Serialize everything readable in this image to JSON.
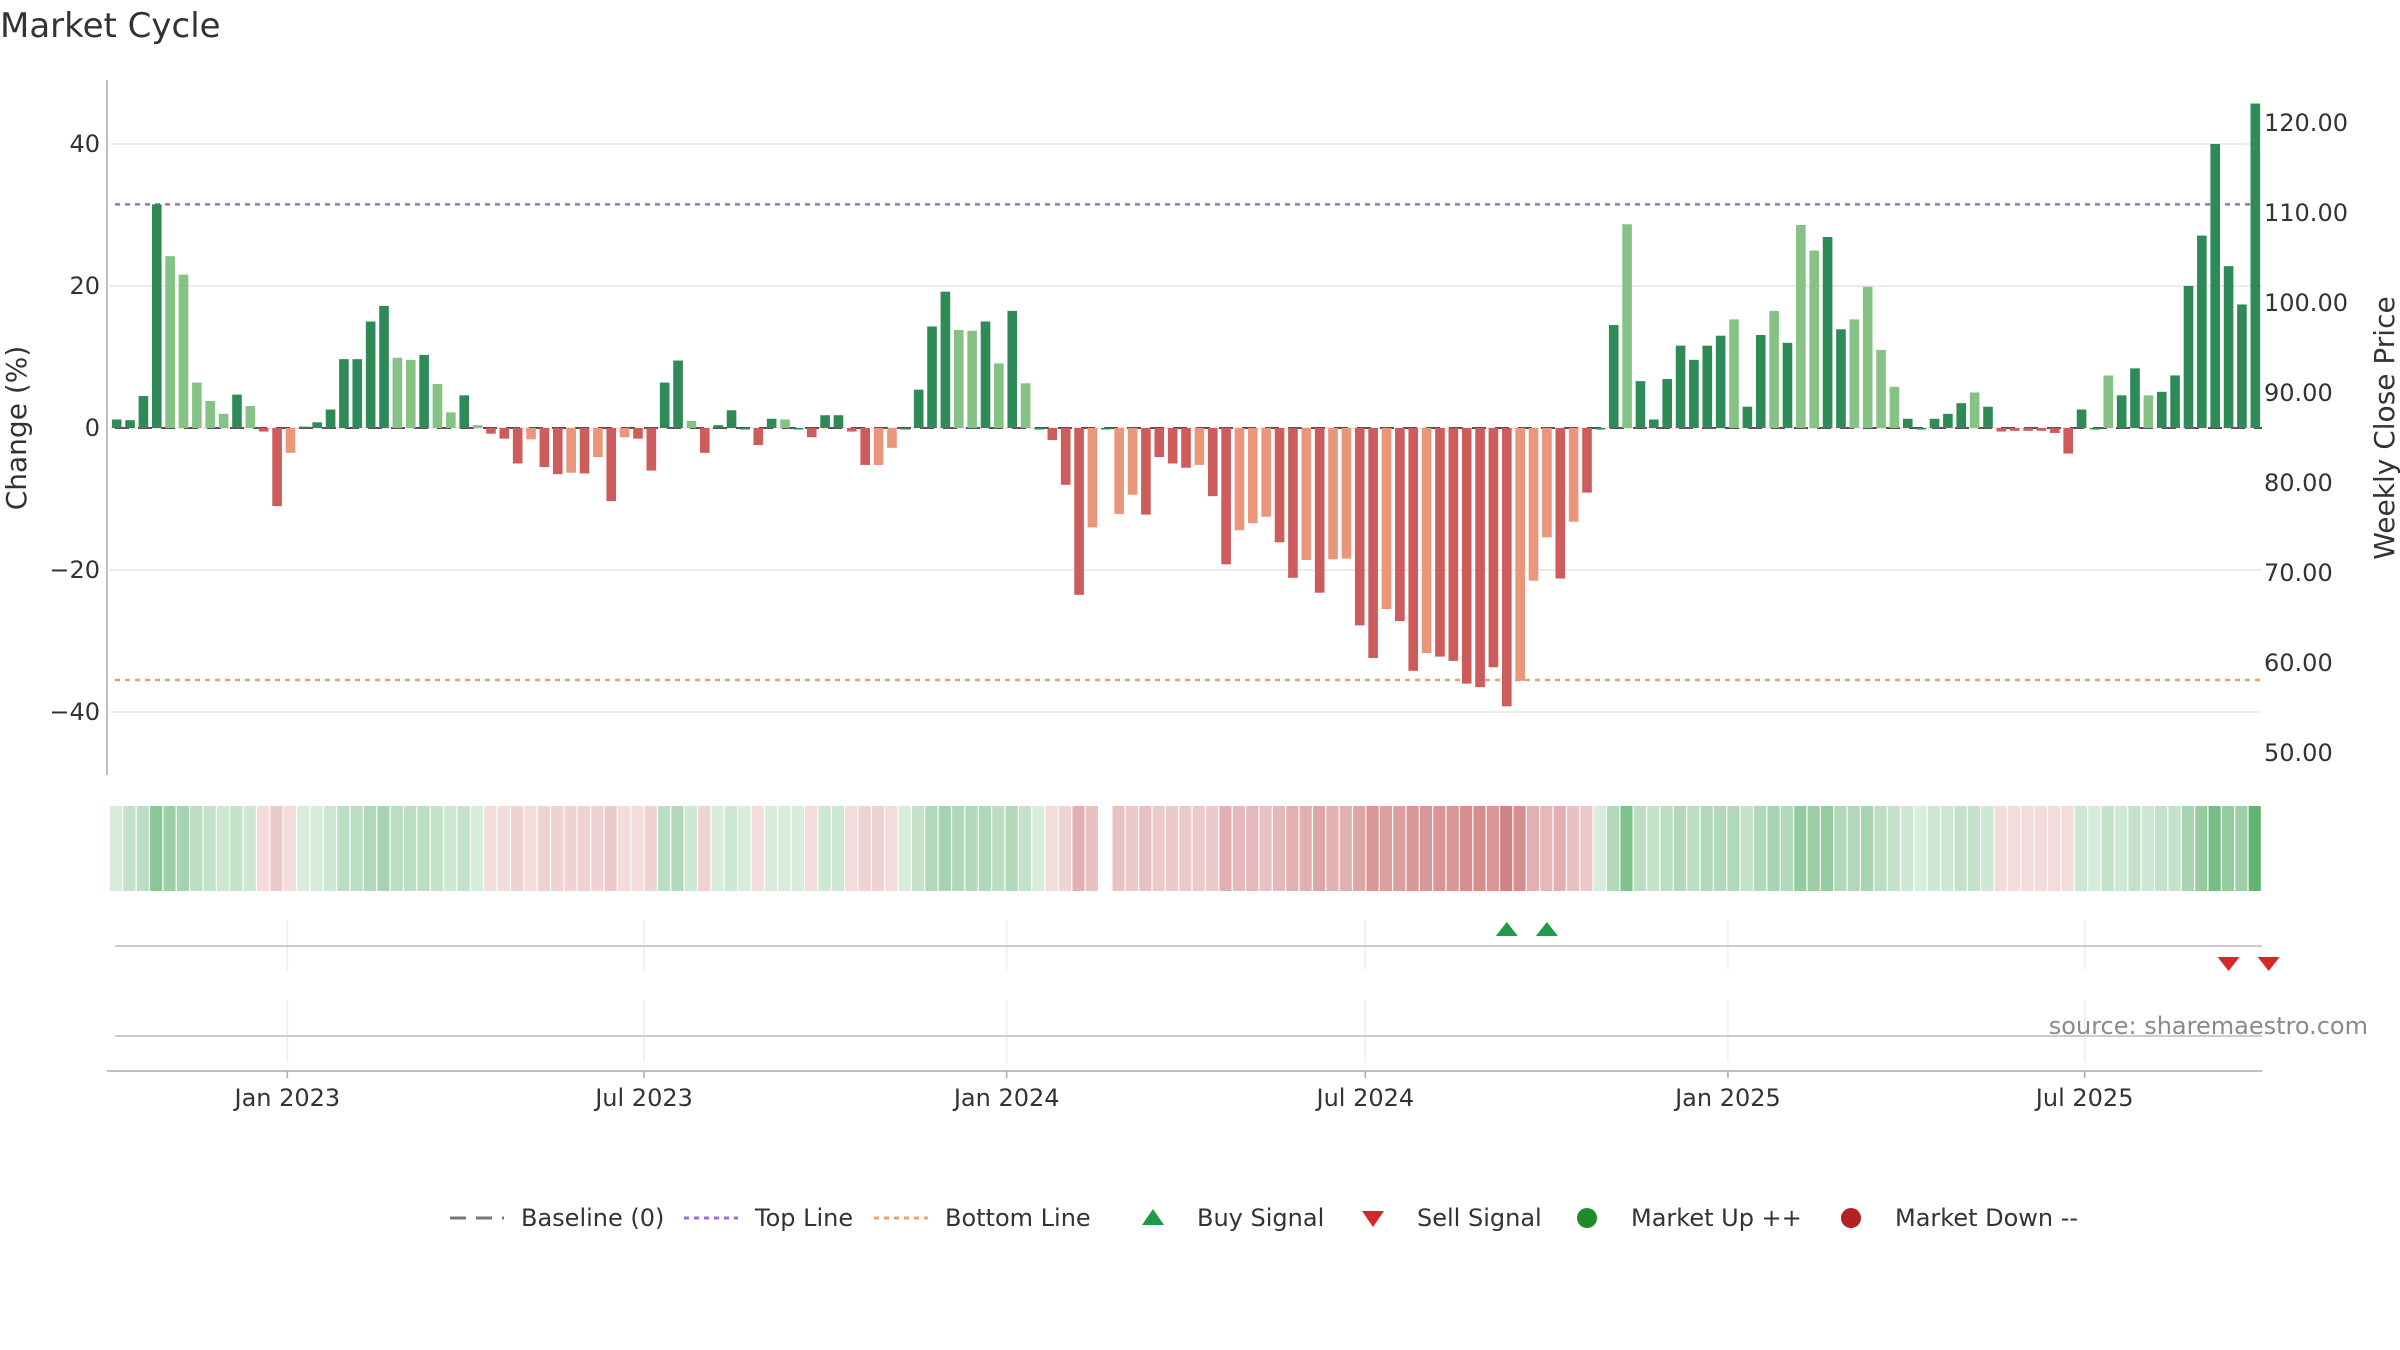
{
  "chart_data": {
    "type": "bar",
    "title": "Market Cycle",
    "ylabel": "Change (%)",
    "y2label": "Weekly Close Price",
    "ylim": [
      -49,
      49
    ],
    "y2lim": [
      48.0,
      124.0
    ],
    "yticks": [
      "40",
      "20",
      "0",
      "−20",
      "−40"
    ],
    "yticks_values": [
      40,
      20,
      0,
      -20,
      -40
    ],
    "y2ticks": [
      "120.00",
      "110.00",
      "100.00",
      "90.00",
      "80.00",
      "70.00",
      "60.00",
      "50.00"
    ],
    "y2ticks_values": [
      120,
      110,
      100,
      90,
      80,
      70,
      60,
      50
    ],
    "x_start": "2022-10-03",
    "x_end": "2025-09-29",
    "xticks": [
      {
        "label": "Jan 2023",
        "date": "2023-01-01"
      },
      {
        "label": "Jul 2023",
        "date": "2023-07-01"
      },
      {
        "label": "Jan 2024",
        "date": "2024-01-01"
      },
      {
        "label": "Jul 2024",
        "date": "2024-07-01"
      },
      {
        "label": "Jan 2025",
        "date": "2025-01-01"
      },
      {
        "label": "Jul 2025",
        "date": "2025-07-01"
      }
    ],
    "top_line": 31.5,
    "bottom_line": -35.5,
    "baseline": 0,
    "values": [
      1.2,
      1.1,
      4.5,
      31.5,
      24.2,
      21.6,
      6.4,
      3.8,
      2.0,
      4.7,
      3.1,
      -0.5,
      -11.0,
      -3.5,
      0.2,
      0.8,
      2.6,
      9.7,
      9.7,
      15.0,
      17.2,
      9.9,
      9.6,
      10.3,
      6.2,
      2.2,
      4.6,
      0.4,
      -0.8,
      -1.5,
      -5.0,
      -1.6,
      -5.5,
      -6.5,
      -6.3,
      -6.4,
      -4.1,
      -10.3,
      -1.3,
      -1.5,
      -6.0,
      6.4,
      9.5,
      1.0,
      -3.5,
      0.4,
      2.5,
      0,
      -2.4,
      1.3,
      1.2,
      0,
      -1.3,
      1.8,
      1.8,
      -0.5,
      -5.2,
      -5.2,
      -2.8,
      0,
      5.4,
      14.3,
      19.2,
      13.8,
      13.7,
      15.0,
      9.1,
      16.5,
      6.3,
      0,
      -1.7,
      -8.0,
      -23.5,
      -14.0,
      0,
      -12.1,
      -9.4,
      -12.2,
      -4.1,
      -5.0,
      -5.6,
      -5.2,
      -9.6,
      -19.2,
      -14.4,
      -13.4,
      -12.5,
      -16.1,
      -21.1,
      -18.6,
      -23.2,
      -18.5,
      -18.4,
      -27.8,
      -32.4,
      -25.5,
      -27.2,
      -34.2,
      -31.7,
      -32.2,
      -32.8,
      -36.0,
      -36.5,
      -33.7,
      -39.2,
      -35.6,
      -21.5,
      -15.4,
      -21.2,
      -13.2,
      -9.1,
      0,
      14.5,
      28.7,
      6.6,
      1.2,
      6.9,
      11.6,
      9.6,
      11.6,
      13.0,
      15.3,
      3.0,
      13.1,
      16.5,
      12.0,
      28.6,
      25.0,
      26.9,
      13.9,
      15.3,
      19.9,
      11.0,
      5.8,
      1.3,
      0,
      1.3,
      2.0,
      3.5,
      5.0,
      3.0,
      -0.5,
      -0.4,
      -0.4,
      -0.4,
      -0.7,
      -3.6,
      2.6,
      0,
      7.4,
      4.6,
      8.4,
      4.6,
      5.1,
      7.4,
      20.0,
      27.1,
      40.0,
      22.8,
      17.4,
      45.7
    ],
    "bar_shade": [
      1,
      1,
      1,
      1,
      0,
      0,
      0,
      0,
      0,
      1,
      0,
      1,
      1,
      0,
      1,
      1,
      1,
      1,
      1,
      1,
      1,
      0,
      0,
      1,
      0,
      0,
      1,
      0,
      1,
      1,
      1,
      0,
      1,
      1,
      0,
      1,
      0,
      1,
      0,
      1,
      1,
      1,
      1,
      0,
      1,
      1,
      1,
      1,
      1,
      1,
      0,
      1,
      1,
      1,
      1,
      1,
      1,
      0,
      0,
      1,
      1,
      1,
      1,
      0,
      0,
      1,
      0,
      1,
      0,
      1,
      1,
      1,
      1,
      0,
      1,
      0,
      0,
      1,
      1,
      1,
      1,
      0,
      1,
      1,
      0,
      0,
      0,
      1,
      1,
      0,
      1,
      0,
      0,
      1,
      1,
      0,
      1,
      1,
      0,
      1,
      1,
      1,
      1,
      1,
      1,
      0,
      0,
      0,
      1,
      0,
      1,
      1,
      1,
      0,
      1,
      1,
      1,
      1,
      1,
      1,
      1,
      0,
      1,
      1,
      0,
      1,
      0,
      0,
      1,
      1,
      0,
      0,
      0,
      0,
      1,
      1,
      1,
      1,
      1,
      0,
      1,
      1,
      1,
      1,
      1,
      1,
      1,
      1,
      1,
      0,
      1,
      1,
      0,
      1,
      1,
      1,
      1,
      1,
      1,
      1,
      1,
      1
    ],
    "regime_strength": [
      0.2,
      0.3,
      0.35,
      0.6,
      0.5,
      0.45,
      0.35,
      0.3,
      0.25,
      0.3,
      0.25,
      0.2,
      0.3,
      0.2,
      0.2,
      0.2,
      0.25,
      0.35,
      0.35,
      0.4,
      0.45,
      0.35,
      0.35,
      0.35,
      0.3,
      0.25,
      0.3,
      0.2,
      0.2,
      0.2,
      0.25,
      0.2,
      0.25,
      0.25,
      0.25,
      0.25,
      0.25,
      0.3,
      0.2,
      0.2,
      0.25,
      0.35,
      0.4,
      0.25,
      0.25,
      0.2,
      0.25,
      0.2,
      0.2,
      0.2,
      0.2,
      0.2,
      0.2,
      0.25,
      0.25,
      0.2,
      0.25,
      0.25,
      0.2,
      0.2,
      0.3,
      0.4,
      0.45,
      0.4,
      0.4,
      0.4,
      0.35,
      0.4,
      0.3,
      0.2,
      0.2,
      0.25,
      0.45,
      0.35,
      0.0,
      0.35,
      0.3,
      0.35,
      0.3,
      0.3,
      0.3,
      0.3,
      0.3,
      0.45,
      0.4,
      0.4,
      0.35,
      0.4,
      0.45,
      0.45,
      0.5,
      0.45,
      0.45,
      0.5,
      0.6,
      0.55,
      0.55,
      0.6,
      0.6,
      0.6,
      0.6,
      0.65,
      0.65,
      0.6,
      0.7,
      0.65,
      0.45,
      0.4,
      0.45,
      0.35,
      0.3,
      0.2,
      0.4,
      0.65,
      0.35,
      0.3,
      0.35,
      0.4,
      0.35,
      0.4,
      0.4,
      0.4,
      0.3,
      0.4,
      0.45,
      0.4,
      0.55,
      0.5,
      0.55,
      0.4,
      0.4,
      0.45,
      0.35,
      0.3,
      0.25,
      0.2,
      0.25,
      0.25,
      0.3,
      0.3,
      0.25,
      0.2,
      0.2,
      0.2,
      0.2,
      0.2,
      0.2,
      0.25,
      0.2,
      0.3,
      0.25,
      0.3,
      0.25,
      0.3,
      0.3,
      0.45,
      0.55,
      0.7,
      0.55,
      0.5,
      0.8
    ],
    "buy_signals": [
      104,
      107
    ],
    "sell_signals": [
      158,
      161
    ],
    "legend": [
      {
        "label": "Baseline (0)",
        "kind": "dash-line",
        "color": "#777777"
      },
      {
        "label": "Top Line",
        "kind": "dotted-line",
        "color": "#9b6fd0"
      },
      {
        "label": "Bottom Line",
        "kind": "dotted-line",
        "color": "#e8a070"
      },
      {
        "label": "Buy Signal",
        "kind": "triangle-up",
        "color": "#1e9b4a"
      },
      {
        "label": "Sell Signal",
        "kind": "triangle-down",
        "color": "#d62728"
      },
      {
        "label": "Market Up ++",
        "kind": "circle",
        "color": "#1f8b2c"
      },
      {
        "label": "Market Down --",
        "kind": "circle",
        "color": "#b22222"
      }
    ],
    "source": "source: sharemaestro.com",
    "colors": {
      "up_strong": "#2e8b57",
      "up_light": "#86c285",
      "down_strong": "#cd5c5c",
      "down_light": "#e9967a",
      "top_line": "#9b6fd0",
      "bottom_line": "#e8a070",
      "grid": "#e6e6e6"
    }
  }
}
